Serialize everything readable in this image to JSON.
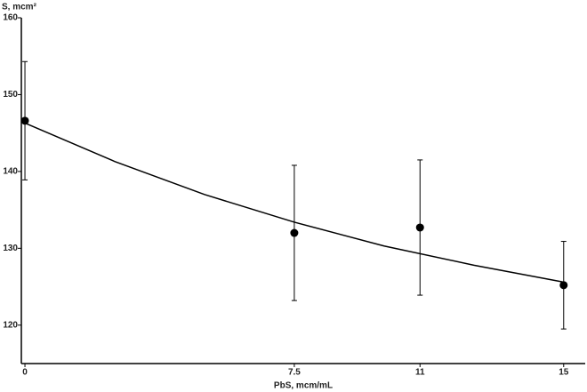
{
  "chart_data": {
    "type": "scatter",
    "x_label": "PbS, mcm/mL",
    "y_label": "S, mcm²",
    "series": [
      {
        "color": "#000000",
        "x": [
          0,
          7.5,
          11,
          15
        ],
        "values": [
          146.6,
          132.0,
          132.7,
          125.2
        ],
        "errors": [
          7.7,
          8.8,
          8.8,
          5.7
        ]
      }
    ],
    "fit": {
      "type": "line",
      "color": "#000000",
      "x": [
        0,
        2.5,
        5,
        7.5,
        10,
        12.5,
        15
      ],
      "values": [
        146.3,
        141.3,
        137.0,
        133.4,
        130.3,
        127.8,
        125.6
      ]
    },
    "xlim": [
      -0.1,
      15.6
    ],
    "ylim": [
      115,
      160
    ],
    "xticks": [
      0,
      7.5,
      11,
      15
    ],
    "yticks": [
      120,
      130,
      140,
      150,
      160
    ]
  }
}
